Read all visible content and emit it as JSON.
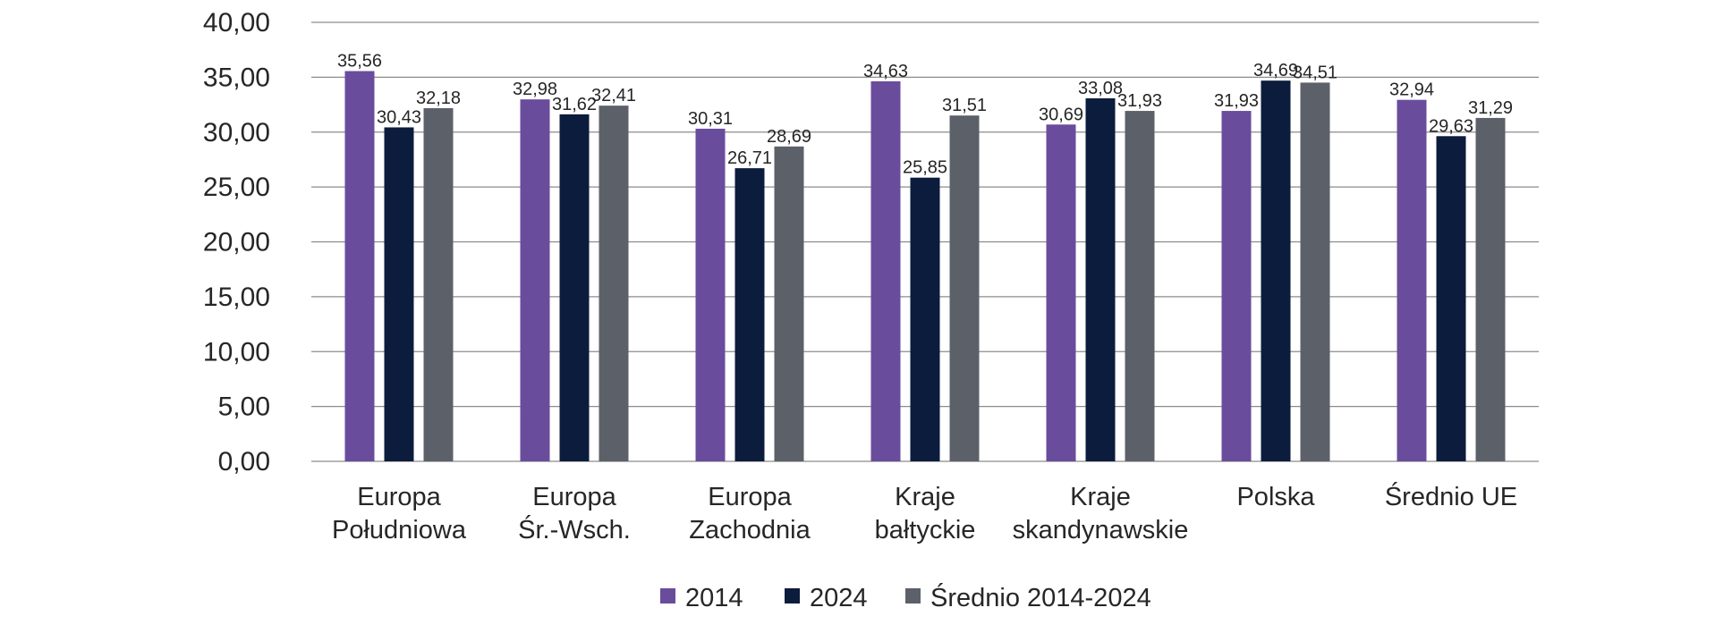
{
  "chart_data": {
    "type": "bar",
    "categories": [
      [
        "Europa",
        "Południowa"
      ],
      [
        "Europa",
        "Śr.-Wsch."
      ],
      [
        "Europa",
        "Zachodnia"
      ],
      [
        "Kraje",
        "bałtyckie"
      ],
      [
        "Kraje",
        "skandynawskie"
      ],
      [
        "Polska"
      ],
      [
        "Średnio UE"
      ]
    ],
    "series": [
      {
        "name": "2014",
        "color": "#6a4c9c",
        "values": [
          35.56,
          32.98,
          30.31,
          34.63,
          30.69,
          31.93,
          32.94
        ],
        "labels": [
          "35,56",
          "32,98",
          "30,31",
          "34,63",
          "30,69",
          "31,93",
          "32,94"
        ]
      },
      {
        "name": "2024",
        "color": "#0c1c3c",
        "values": [
          30.43,
          31.62,
          26.71,
          25.85,
          33.08,
          34.69,
          29.63
        ],
        "labels": [
          "30,43",
          "31,62",
          "26,71",
          "25,85",
          "33,08",
          "34,69",
          "29,63"
        ]
      },
      {
        "name": "Średnio 2014-2024",
        "color": "#5c6068",
        "values": [
          32.18,
          32.41,
          28.69,
          31.51,
          31.93,
          34.51,
          31.29
        ],
        "labels": [
          "32,18",
          "32,41",
          "28,69",
          "31,51",
          "31,93",
          "34,51",
          "31,29"
        ]
      }
    ],
    "ylim": [
      0,
      40
    ],
    "yticks": [
      0,
      5,
      10,
      15,
      20,
      25,
      30,
      35,
      40
    ],
    "ytick_labels": [
      "0,00",
      "5,00",
      "10,00",
      "15,00",
      "20,00",
      "25,00",
      "30,00",
      "35,00",
      "40,00"
    ],
    "title": "",
    "xlabel": "",
    "ylabel": "",
    "grid": true,
    "legend_position": "bottom"
  }
}
